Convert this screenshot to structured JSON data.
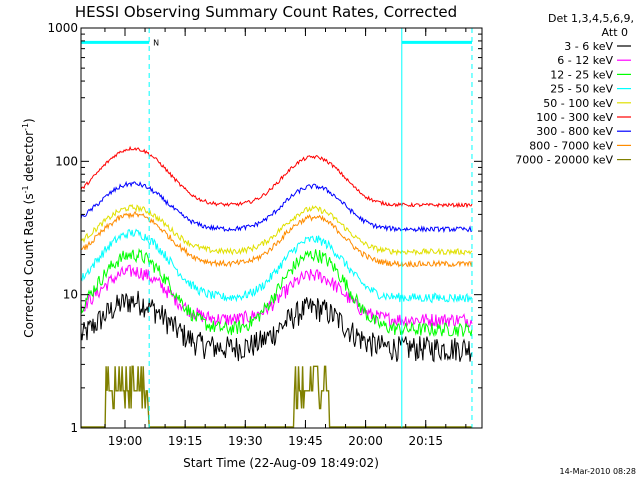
{
  "chart_data": {
    "type": "line",
    "title": "HESSI Observing Summary Count Rates, Corrected",
    "xlabel": "Start Time (22-Aug-09 18:49:02)",
    "ylabel_parts": [
      "Corrected Count Rate (s",
      "-1",
      " detector",
      "-1",
      ")"
    ],
    "yscale": "log",
    "ylim": [
      1,
      1000
    ],
    "xlim_minutes": [
      0,
      100
    ],
    "x_ticks": [
      {
        "label": "19:00",
        "min": 10.97
      },
      {
        "label": "19:15",
        "min": 25.97
      },
      {
        "label": "19:30",
        "min": 40.97
      },
      {
        "label": "19:45",
        "min": 55.97
      },
      {
        "label": "20:00",
        "min": 70.97
      },
      {
        "label": "20:15",
        "min": 85.97
      }
    ],
    "y_ticks": [
      {
        "label": "1",
        "value": 1
      },
      {
        "label": "10",
        "value": 10
      },
      {
        "label": "100",
        "value": 100
      },
      {
        "label": "1000",
        "value": 1000
      }
    ],
    "legend_header": [
      "Det 1,3,4,5,6,9,",
      "Att 0"
    ],
    "legend_position": "right",
    "series": [
      {
        "name": "3 - 6 keV",
        "color": "#000000",
        "base": 4.0,
        "peak1": 9.0,
        "peak2": 8.0,
        "noise": 0.22
      },
      {
        "name": "6 - 12 keV",
        "color": "#ff00ff",
        "base": 6.5,
        "peak1": 15.0,
        "peak2": 14.0,
        "noise": 0.12
      },
      {
        "name": "12 - 25 keV",
        "color": "#00ff00",
        "base": 5.5,
        "peak1": 20.0,
        "peak2": 20.0,
        "noise": 0.12
      },
      {
        "name": "25 - 50 keV",
        "color": "#00ffff",
        "base": 9.5,
        "peak1": 29.0,
        "peak2": 26.0,
        "noise": 0.08
      },
      {
        "name": "50 - 100 keV",
        "color": "#e0e000",
        "base": 21.0,
        "peak1": 45.0,
        "peak2": 44.0,
        "noise": 0.05
      },
      {
        "name": "100 - 300 keV",
        "color": "#ff0000",
        "base": 47.0,
        "peak1": 125.0,
        "peak2": 108.0,
        "noise": 0.03
      },
      {
        "name": "300 - 800 keV",
        "color": "#0000ff",
        "base": 31.0,
        "peak1": 68.0,
        "peak2": 65.0,
        "noise": 0.04
      },
      {
        "name": "800 - 7000 keV",
        "color": "#ff8c00",
        "base": 17.0,
        "peak1": 40.0,
        "peak2": 38.0,
        "noise": 0.05
      },
      {
        "name": "7000 - 20000 keV",
        "color": "#808000",
        "base": 1.0,
        "peak1": 2.0,
        "peak2": 1.9,
        "noise": 0.3
      }
    ],
    "peaks_minutes": [
      13,
      58
    ],
    "annotations": {
      "night_flag_label": "N",
      "night_intervals_minutes": [
        [
          0,
          17
        ],
        [
          80,
          97.5
        ]
      ],
      "night_flag_value": 780,
      "saa_lines_minutes": [
        0,
        17,
        80,
        97.5
      ]
    }
  },
  "footer": {
    "timestamp": "14-Mar-2010 08:28"
  }
}
